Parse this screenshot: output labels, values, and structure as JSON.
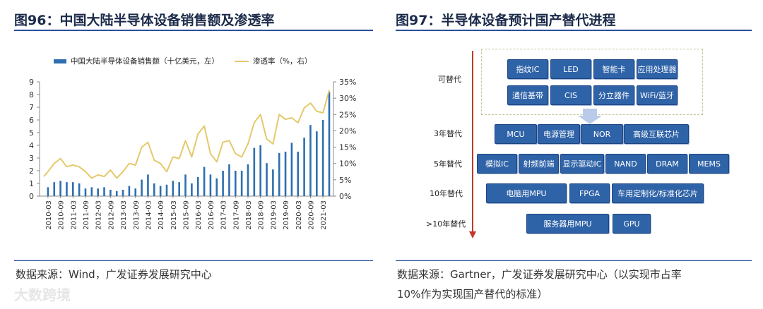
{
  "left_panel": {
    "title": "图96：中国大陆半导体设备销售额及渗透率",
    "source": "数据来源：Wind，广发证券发展研究中心"
  },
  "right_panel": {
    "title": "图97：半导体设备预计国产替代进程",
    "source_line1": "数据来源：Gartner，广发证券发展研究中心（以实现市占率",
    "source_line2": "10%作为实现国产替代的标准）",
    "stages": [
      {
        "label": "可替代",
        "items": [
          "指纹IC",
          "LED",
          "智能卡",
          "应用处理器",
          "通信基带",
          "CIS",
          "分立器件",
          "WiFi/蓝牙"
        ]
      },
      {
        "label": "3年替代",
        "items": [
          "MCU",
          "电源管理",
          "NOR",
          "高级互联芯片"
        ]
      },
      {
        "label": "5年替代",
        "items": [
          "模拟IC",
          "射频前端",
          "显示驱动IC",
          "NAND",
          "DRAM",
          "MEMS"
        ]
      },
      {
        "label": "10年替代",
        "items": [
          "电脑用MPU",
          "FPGA",
          "车用定制化/标准化芯片"
        ]
      },
      {
        "label": ">10年替代",
        "items": [
          "服务器用MPU",
          "GPU"
        ]
      }
    ],
    "colors": {
      "box": "#2f63a8",
      "arrow": "#c0392b"
    }
  },
  "watermark": "大数跨境",
  "chart_data": {
    "type": "bar",
    "legend": {
      "bar": "中国大陆半导体设备销售额（十亿美元，左）",
      "line": "渗透率（%，右）",
      "placement": "top"
    },
    "x_ticks": [
      "2010-03",
      "2010-09",
      "2011-03",
      "2011-09",
      "2012-03",
      "2012-09",
      "2013-03",
      "2013-09",
      "2014-03",
      "2014-09",
      "2015-03",
      "2015-09",
      "2016-03",
      "2016-09",
      "2017-03",
      "2017-09",
      "2018-03",
      "2018-09",
      "2019-03",
      "2019-09",
      "2020-03",
      "2020-09",
      "2021-03"
    ],
    "x_start": "2010-01",
    "x_step_months": 1,
    "ylim_left": [
      0,
      9
    ],
    "yticks_left": [
      "0",
      "1",
      "2",
      "3",
      "4",
      "5",
      "6",
      "7",
      "8",
      "9"
    ],
    "ylim_right": [
      0,
      35
    ],
    "yticks_right": [
      "0%",
      "5%",
      "10%",
      "15%",
      "20%",
      "25%",
      "30%",
      "35%"
    ],
    "bars": [
      {
        "date": "2010-03",
        "value": 0.7
      },
      {
        "date": "2010-06",
        "value": 1.1
      },
      {
        "date": "2010-09",
        "value": 1.2
      },
      {
        "date": "2010-12",
        "value": 1.1
      },
      {
        "date": "2011-03",
        "value": 1.1
      },
      {
        "date": "2011-06",
        "value": 1.0
      },
      {
        "date": "2011-09",
        "value": 0.6
      },
      {
        "date": "2011-12",
        "value": 0.7
      },
      {
        "date": "2012-03",
        "value": 0.6
      },
      {
        "date": "2012-06",
        "value": 0.7
      },
      {
        "date": "2012-09",
        "value": 0.5
      },
      {
        "date": "2012-12",
        "value": 0.4
      },
      {
        "date": "2013-03",
        "value": 0.5
      },
      {
        "date": "2013-06",
        "value": 0.8
      },
      {
        "date": "2013-09",
        "value": 0.6
      },
      {
        "date": "2013-12",
        "value": 1.3
      },
      {
        "date": "2014-03",
        "value": 1.7
      },
      {
        "date": "2014-06",
        "value": 1.0
      },
      {
        "date": "2014-09",
        "value": 0.8
      },
      {
        "date": "2014-12",
        "value": 0.9
      },
      {
        "date": "2015-03",
        "value": 1.2
      },
      {
        "date": "2015-06",
        "value": 1.1
      },
      {
        "date": "2015-09",
        "value": 1.7
      },
      {
        "date": "2015-12",
        "value": 1.0
      },
      {
        "date": "2016-03",
        "value": 1.5
      },
      {
        "date": "2016-06",
        "value": 2.3
      },
      {
        "date": "2016-09",
        "value": 1.7
      },
      {
        "date": "2016-12",
        "value": 1.4
      },
      {
        "date": "2017-03",
        "value": 2.0
      },
      {
        "date": "2017-06",
        "value": 2.5
      },
      {
        "date": "2017-09",
        "value": 2.0
      },
      {
        "date": "2017-12",
        "value": 2.0
      },
      {
        "date": "2018-03",
        "value": 2.5
      },
      {
        "date": "2018-06",
        "value": 3.8
      },
      {
        "date": "2018-09",
        "value": 4.0
      },
      {
        "date": "2018-12",
        "value": 2.6
      },
      {
        "date": "2019-03",
        "value": 2.1
      },
      {
        "date": "2019-06",
        "value": 3.4
      },
      {
        "date": "2019-09",
        "value": 3.5
      },
      {
        "date": "2019-12",
        "value": 4.2
      },
      {
        "date": "2020-03",
        "value": 3.5
      },
      {
        "date": "2020-06",
        "value": 4.6
      },
      {
        "date": "2020-09",
        "value": 5.6
      },
      {
        "date": "2020-12",
        "value": 5.1
      },
      {
        "date": "2021-03",
        "value": 6.0
      },
      {
        "date": "2021-06",
        "value": 8.2
      }
    ],
    "line_pct": [
      {
        "date": "2010-01",
        "value": 6.0
      },
      {
        "date": "2010-03",
        "value": 7.5
      },
      {
        "date": "2010-06",
        "value": 10.0
      },
      {
        "date": "2010-09",
        "value": 11.5
      },
      {
        "date": "2010-12",
        "value": 9.0
      },
      {
        "date": "2011-03",
        "value": 9.5
      },
      {
        "date": "2011-06",
        "value": 9.0
      },
      {
        "date": "2011-09",
        "value": 7.5
      },
      {
        "date": "2011-12",
        "value": 5.5
      },
      {
        "date": "2012-03",
        "value": 6.5
      },
      {
        "date": "2012-06",
        "value": 6.0
      },
      {
        "date": "2012-09",
        "value": 8.0
      },
      {
        "date": "2012-12",
        "value": 5.5
      },
      {
        "date": "2013-03",
        "value": 7.5
      },
      {
        "date": "2013-06",
        "value": 10.0
      },
      {
        "date": "2013-09",
        "value": 9.5
      },
      {
        "date": "2013-12",
        "value": 15.0
      },
      {
        "date": "2014-03",
        "value": 16.5
      },
      {
        "date": "2014-06",
        "value": 11.0
      },
      {
        "date": "2014-09",
        "value": 10.0
      },
      {
        "date": "2014-12",
        "value": 7.5
      },
      {
        "date": "2015-03",
        "value": 12.0
      },
      {
        "date": "2015-06",
        "value": 11.5
      },
      {
        "date": "2015-09",
        "value": 17.0
      },
      {
        "date": "2015-12",
        "value": 12.0
      },
      {
        "date": "2016-03",
        "value": 19.0
      },
      {
        "date": "2016-06",
        "value": 21.5
      },
      {
        "date": "2016-09",
        "value": 13.0
      },
      {
        "date": "2016-12",
        "value": 10.5
      },
      {
        "date": "2017-03",
        "value": 16.5
      },
      {
        "date": "2017-06",
        "value": 17.0
      },
      {
        "date": "2017-09",
        "value": 13.0
      },
      {
        "date": "2017-12",
        "value": 12.0
      },
      {
        "date": "2018-03",
        "value": 16.0
      },
      {
        "date": "2018-06",
        "value": 22.5
      },
      {
        "date": "2018-09",
        "value": 25.0
      },
      {
        "date": "2018-12",
        "value": 17.5
      },
      {
        "date": "2019-03",
        "value": 16.0
      },
      {
        "date": "2019-06",
        "value": 25.0
      },
      {
        "date": "2019-09",
        "value": 23.5
      },
      {
        "date": "2019-12",
        "value": 24.0
      },
      {
        "date": "2020-03",
        "value": 22.5
      },
      {
        "date": "2020-06",
        "value": 27.0
      },
      {
        "date": "2020-09",
        "value": 28.5
      },
      {
        "date": "2020-12",
        "value": 26.0
      },
      {
        "date": "2021-03",
        "value": 25.5
      },
      {
        "date": "2021-06",
        "value": 32.5
      }
    ],
    "colors": {
      "bar": "#2e6fb0",
      "line": "#e4c96a",
      "axis": "#888888"
    }
  }
}
